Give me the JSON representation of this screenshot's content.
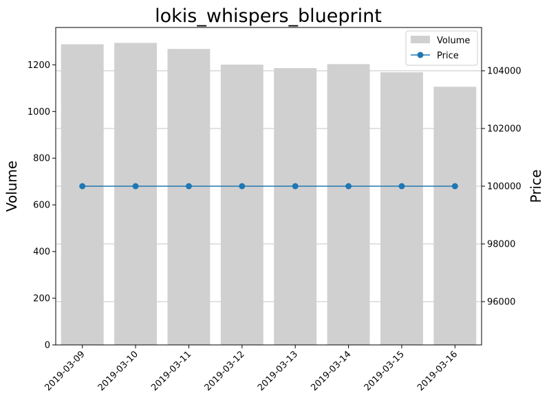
{
  "chart_data": {
    "type": "bar",
    "title": "lokis_whispers_blueprint",
    "xlabel": "",
    "ylabel": "Volume",
    "y2label": "Price",
    "categories": [
      "2019-03-09",
      "2019-03-10",
      "2019-03-11",
      "2019-03-12",
      "2019-03-13",
      "2019-03-14",
      "2019-03-15",
      "2019-03-16"
    ],
    "series": [
      {
        "name": "Volume",
        "type": "bar",
        "axis": "left",
        "color": "#d0d0d0",
        "values": [
          1288,
          1294,
          1268,
          1201,
          1186,
          1203,
          1168,
          1106
        ]
      },
      {
        "name": "Price",
        "type": "line",
        "axis": "right",
        "color": "#1f77b4",
        "values": [
          100000,
          100000,
          100000,
          100000,
          100000,
          100000,
          100000,
          100000
        ]
      }
    ],
    "ylim": [
      0,
      1360
    ],
    "y2lim": [
      94500,
      105500
    ],
    "yticks": [
      0,
      200,
      400,
      600,
      800,
      1000,
      1200
    ],
    "y2ticks": [
      96000,
      98000,
      100000,
      102000,
      104000
    ],
    "grid": true,
    "legend_position": "top-right"
  }
}
